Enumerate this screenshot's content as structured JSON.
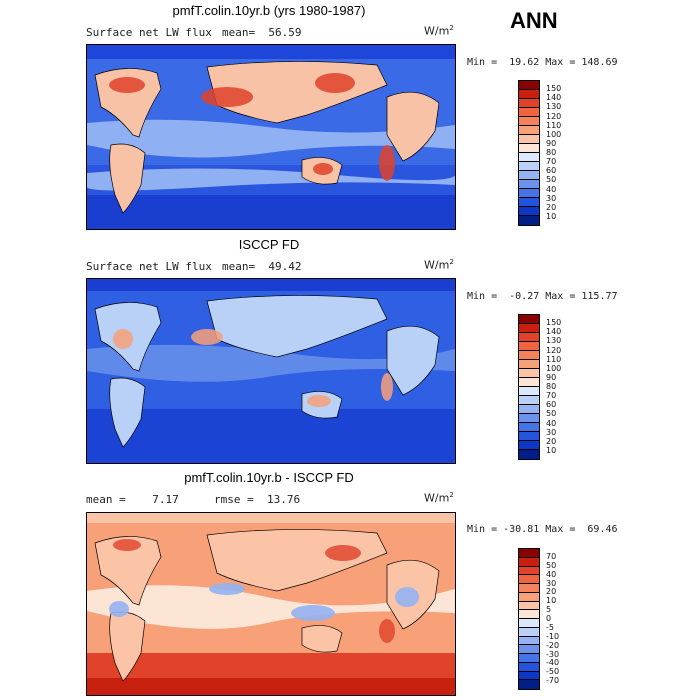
{
  "season": "ANN",
  "panels": [
    {
      "title": "pmfT.colin.10yr.b (yrs 1980-1987)",
      "left_text": "Surface net LW flux",
      "mean_text": "mean=  56.59",
      "units": "W/m",
      "units_exp": "2",
      "minmax": "Min =  19.62 Max = 148.69",
      "colorbar_labels": [
        "150",
        "140",
        "130",
        "120",
        "110",
        "100",
        "90",
        "80",
        "70",
        "60",
        "50",
        "40",
        "30",
        "20",
        "10"
      ],
      "colorbar_colors": [
        "#8b0000",
        "#c8200f",
        "#e0422a",
        "#f0653f",
        "#f4825a",
        "#f8a078",
        "#fbc4a6",
        "#fde5d5",
        "#dce8fb",
        "#b9d0f7",
        "#93b3f2",
        "#6b93ec",
        "#4574e6",
        "#2255dc",
        "#0d37c4",
        "#001f86"
      ]
    },
    {
      "title": "ISCCP FD",
      "left_text": "Surface net LW flux",
      "mean_text": "mean=  49.42",
      "units": "W/m",
      "units_exp": "2",
      "minmax": "Min =  -0.27 Max = 115.77",
      "colorbar_labels": [
        "150",
        "140",
        "130",
        "120",
        "110",
        "100",
        "90",
        "80",
        "70",
        "60",
        "50",
        "40",
        "30",
        "20",
        "10"
      ],
      "colorbar_colors": [
        "#8b0000",
        "#c8200f",
        "#e0422a",
        "#f0653f",
        "#f4825a",
        "#f8a078",
        "#fbc4a6",
        "#fde5d5",
        "#dce8fb",
        "#b9d0f7",
        "#93b3f2",
        "#6b93ec",
        "#4574e6",
        "#2255dc",
        "#0d37c4",
        "#001f86"
      ]
    },
    {
      "title": "pmfT.colin.10yr.b - ISCCP FD",
      "left_text": "mean =    7.17",
      "mean_text": "rmse =  13.76",
      "units": "W/m",
      "units_exp": "2",
      "minmax": "Min = -30.81 Max =  69.46",
      "colorbar_labels": [
        "70",
        "50",
        "40",
        "30",
        "20",
        "10",
        "5",
        "0",
        "-5",
        "-10",
        "-20",
        "-30",
        "-40",
        "-50",
        "-70"
      ],
      "colorbar_colors": [
        "#8b0000",
        "#c8200f",
        "#e0422a",
        "#f0653f",
        "#f4825a",
        "#f8a078",
        "#fbc4a6",
        "#fde5d5",
        "#dce8fb",
        "#b9d0f7",
        "#93b3f2",
        "#6b93ec",
        "#4574e6",
        "#2255dc",
        "#0d37c4",
        "#001f86"
      ]
    }
  ]
}
